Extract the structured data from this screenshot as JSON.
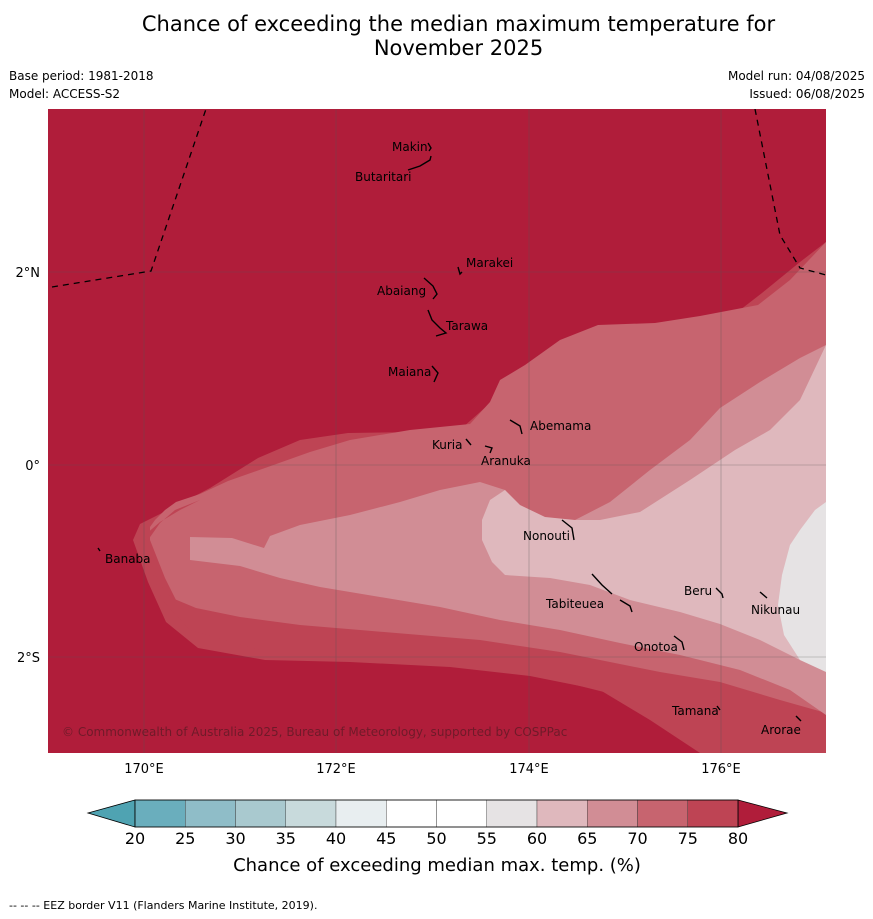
{
  "title_line1": "Chance of exceeding the median maximum temperature for",
  "title_line2": "November 2025",
  "meta": {
    "base_period": "Base period: 1981-2018",
    "model": "Model: ACCESS-S2",
    "model_run": "Model run: 04/08/2025",
    "issued": "Issued: 06/08/2025"
  },
  "axes": {
    "lon_ticks": [
      "170°E",
      "172°E",
      "174°E",
      "176°E"
    ],
    "lat_ticks": [
      "2°N",
      "0°",
      "2°S"
    ]
  },
  "places": {
    "makin": "Makin",
    "butaritari": "Butaritari",
    "marakei": "Marakei",
    "abaiang": "Abaiang",
    "tarawa": "Tarawa",
    "maiana": "Maiana",
    "abemama": "Abemama",
    "kuria": "Kuria",
    "aranuka": "Aranuka",
    "banaba": "Banaba",
    "nonouti": "Nonouti",
    "tabiteuea": "Tabiteuea",
    "beru": "Beru",
    "nikunau": "Nikunau",
    "onotoa": "Onotoa",
    "tamana": "Tamana",
    "arorae": "Arorae"
  },
  "copyright": "© Commonwealth of Australia 2025, Bureau of Meteorology, supported by COSPPac",
  "colorbar": {
    "ticks": [
      "20",
      "25",
      "30",
      "35",
      "40",
      "45",
      "50",
      "55",
      "60",
      "65",
      "70",
      "75",
      "80"
    ],
    "title": "Chance of exceeding median max. temp. (%)",
    "colors": {
      "below20": "#4fa3b2",
      "c20_25": "#6aaebd",
      "c25_30": "#8fbdc8",
      "c30_35": "#a9c9cf",
      "c35_40": "#c8dadc",
      "c40_45": "#e8eef0",
      "c45_50": "#ffffff",
      "c50_55": "#ffffff",
      "c55_60": "#e6e3e4",
      "c60_65": "#dfb8bd",
      "c65_70": "#d18d95",
      "c70_75": "#c7646f",
      "c75_80": "#be4454",
      "above80": "#b01d3a"
    }
  },
  "footer": "--  --  -- EEZ border V11 (Flanders Marine Institute, 2019)."
}
